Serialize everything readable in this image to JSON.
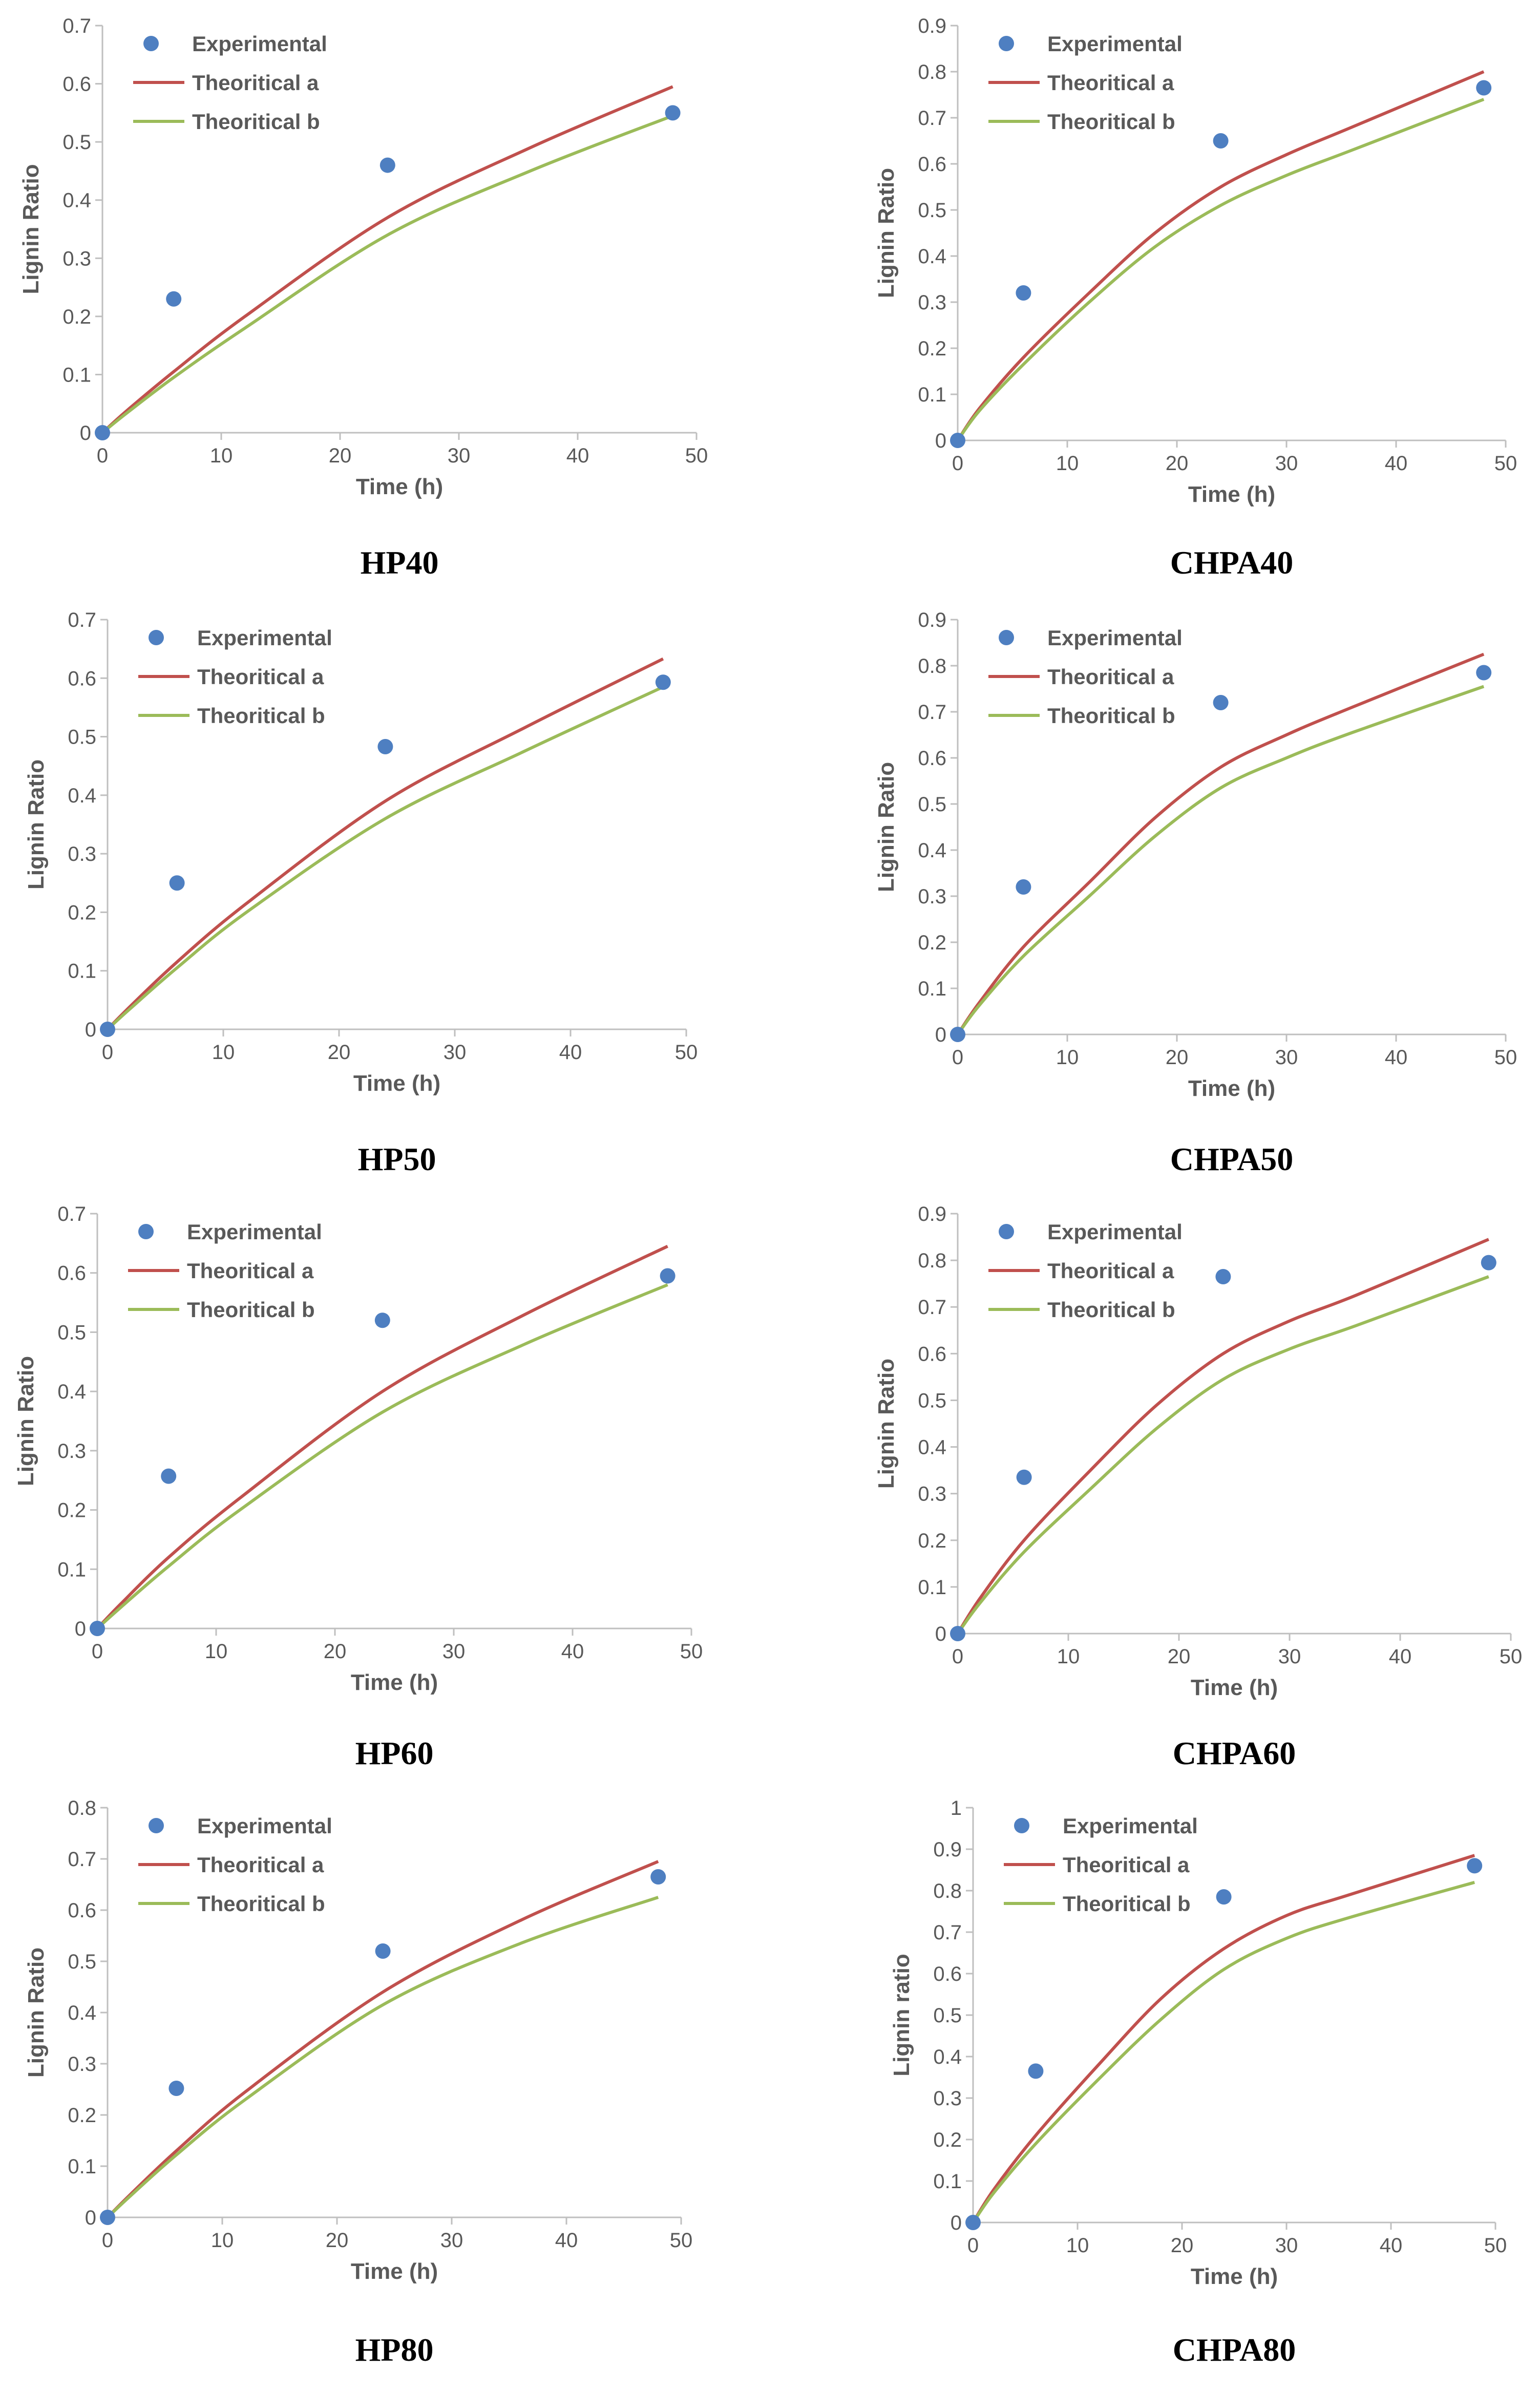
{
  "colors": {
    "experimental": "#4e7fc1",
    "theoretical_a": "#c0504d",
    "theoretical_b": "#9bbb59",
    "axis": "#bfbfbf",
    "text": "#595959"
  },
  "chart_data": [
    {
      "type": "scatter+line",
      "caption": "HP40",
      "xlabel": "Time (h)",
      "ylabel": "Lignin Ratio",
      "xlim": [
        0,
        50
      ],
      "xticks": [
        "0",
        "10",
        "20",
        "30",
        "40",
        "50"
      ],
      "ylim": [
        0,
        0.7
      ],
      "yticks": [
        "0",
        "0.1",
        "0.2",
        "0.3",
        "0.4",
        "0.5",
        "0.6",
        "0.7"
      ],
      "grid": false,
      "legend": "top-left",
      "series": [
        {
          "name": "Experimental",
          "kind": "scatter",
          "x": [
            0,
            6,
            24,
            48
          ],
          "y": [
            0,
            0.23,
            0.46,
            0.55
          ]
        },
        {
          "name": "Theoritical a",
          "kind": "line",
          "x": [
            0,
            2,
            6,
            12,
            24,
            36,
            48
          ],
          "y": [
            0,
            0.037,
            0.105,
            0.2,
            0.37,
            0.49,
            0.595
          ]
        },
        {
          "name": "Theoritical b",
          "kind": "line",
          "x": [
            0,
            2,
            6,
            12,
            24,
            36,
            48
          ],
          "y": [
            0,
            0.033,
            0.095,
            0.18,
            0.34,
            0.45,
            0.545
          ]
        }
      ]
    },
    {
      "type": "scatter+line",
      "caption": "CHPA40",
      "xlabel": "Time (h)",
      "ylabel": "Lignin Ratio",
      "xlim": [
        0,
        50
      ],
      "xticks": [
        "0",
        "10",
        "20",
        "30",
        "40",
        "50"
      ],
      "ylim": [
        0,
        0.9
      ],
      "yticks": [
        "0",
        "0.1",
        "0.2",
        "0.3",
        "0.4",
        "0.5",
        "0.6",
        "0.7",
        "0.8",
        "0.9"
      ],
      "grid": false,
      "legend": "top-left",
      "series": [
        {
          "name": "Experimental",
          "kind": "scatter",
          "x": [
            0,
            6,
            24,
            48
          ],
          "y": [
            0,
            0.32,
            0.65,
            0.765
          ]
        },
        {
          "name": "Theoritical a",
          "kind": "line",
          "x": [
            0,
            2,
            6,
            12,
            18,
            24,
            30,
            36,
            48
          ],
          "y": [
            0,
            0.07,
            0.18,
            0.32,
            0.45,
            0.55,
            0.62,
            0.68,
            0.8
          ]
        },
        {
          "name": "Theoritical b",
          "kind": "line",
          "x": [
            0,
            2,
            6,
            12,
            18,
            24,
            30,
            36,
            48
          ],
          "y": [
            0,
            0.065,
            0.165,
            0.3,
            0.42,
            0.51,
            0.575,
            0.63,
            0.74
          ]
        }
      ]
    },
    {
      "type": "scatter+line",
      "caption": "HP50",
      "xlabel": "Time (h)",
      "ylabel": "Lignin Ratio",
      "xlim": [
        0,
        50
      ],
      "xticks": [
        "0",
        "10",
        "20",
        "30",
        "40",
        "50"
      ],
      "ylim": [
        0,
        0.7
      ],
      "yticks": [
        "0",
        "0.1",
        "0.2",
        "0.3",
        "0.4",
        "0.5",
        "0.6",
        "0.7"
      ],
      "grid": false,
      "legend": "top-left",
      "series": [
        {
          "name": "Experimental",
          "kind": "scatter",
          "x": [
            0,
            6,
            24,
            48
          ],
          "y": [
            0,
            0.25,
            0.483,
            0.593
          ]
        },
        {
          "name": "Theoritical a",
          "kind": "line",
          "x": [
            0,
            2,
            6,
            12,
            24,
            36,
            48
          ],
          "y": [
            0,
            0.04,
            0.115,
            0.215,
            0.39,
            0.515,
            0.633
          ]
        },
        {
          "name": "Theoritical b",
          "kind": "line",
          "x": [
            0,
            2,
            6,
            12,
            24,
            36,
            48
          ],
          "y": [
            0,
            0.036,
            0.105,
            0.2,
            0.36,
            0.475,
            0.585
          ]
        }
      ]
    },
    {
      "type": "scatter+line",
      "caption": "CHPA50",
      "xlabel": "Time (h)",
      "ylabel": "Lignin Ratio",
      "xlim": [
        0,
        50
      ],
      "xticks": [
        "0",
        "10",
        "20",
        "30",
        "40",
        "50"
      ],
      "ylim": [
        0,
        0.9
      ],
      "yticks": [
        "0",
        "0.1",
        "0.2",
        "0.3",
        "0.4",
        "0.5",
        "0.6",
        "0.7",
        "0.8",
        "0.9"
      ],
      "grid": false,
      "legend": "top-left",
      "series": [
        {
          "name": "Experimental",
          "kind": "scatter",
          "x": [
            0,
            6,
            24,
            48
          ],
          "y": [
            0,
            0.32,
            0.72,
            0.785
          ]
        },
        {
          "name": "Theoritical a",
          "kind": "line",
          "x": [
            0,
            2,
            6,
            12,
            18,
            24,
            30,
            36,
            48
          ],
          "y": [
            0,
            0.07,
            0.19,
            0.33,
            0.47,
            0.58,
            0.65,
            0.71,
            0.825
          ]
        },
        {
          "name": "Theoritical b",
          "kind": "line",
          "x": [
            0,
            2,
            6,
            12,
            18,
            24,
            30,
            36,
            48
          ],
          "y": [
            0,
            0.064,
            0.17,
            0.3,
            0.43,
            0.535,
            0.6,
            0.655,
            0.755
          ]
        }
      ]
    },
    {
      "type": "scatter+line",
      "caption": "HP60",
      "xlabel": "Time (h)",
      "ylabel": "Lignin Ratio",
      "xlim": [
        0,
        50
      ],
      "xticks": [
        "0",
        "10",
        "20",
        "30",
        "40",
        "50"
      ],
      "ylim": [
        0,
        0.7
      ],
      "yticks": [
        "0",
        "0.1",
        "0.2",
        "0.3",
        "0.4",
        "0.5",
        "0.6",
        "0.7"
      ],
      "grid": false,
      "legend": "top-left",
      "series": [
        {
          "name": "Experimental",
          "kind": "scatter",
          "x": [
            0,
            6,
            24,
            48
          ],
          "y": [
            0,
            0.257,
            0.52,
            0.595
          ]
        },
        {
          "name": "Theoritical a",
          "kind": "line",
          "x": [
            0,
            2,
            6,
            12,
            24,
            36,
            48
          ],
          "y": [
            0,
            0.042,
            0.12,
            0.22,
            0.4,
            0.53,
            0.645
          ]
        },
        {
          "name": "Theoritical b",
          "kind": "line",
          "x": [
            0,
            2,
            6,
            12,
            24,
            36,
            48
          ],
          "y": [
            0,
            0.036,
            0.105,
            0.2,
            0.365,
            0.48,
            0.58
          ]
        }
      ]
    },
    {
      "type": "scatter+line",
      "caption": "CHPA60",
      "xlabel": "Time (h)",
      "ylabel": "Lignin Ratio",
      "xlim": [
        0,
        50
      ],
      "xticks": [
        "0",
        "10",
        "20",
        "30",
        "40",
        "50"
      ],
      "ylim": [
        0,
        0.9
      ],
      "yticks": [
        "0",
        "0.1",
        "0.2",
        "0.3",
        "0.4",
        "0.5",
        "0.6",
        "0.7",
        "0.8",
        "0.9"
      ],
      "grid": false,
      "legend": "top-left",
      "series": [
        {
          "name": "Experimental",
          "kind": "scatter",
          "x": [
            0,
            6,
            24,
            48
          ],
          "y": [
            0,
            0.335,
            0.765,
            0.795
          ]
        },
        {
          "name": "Theoritical a",
          "kind": "line",
          "x": [
            0,
            2,
            6,
            12,
            18,
            24,
            30,
            36,
            48
          ],
          "y": [
            0,
            0.075,
            0.2,
            0.35,
            0.49,
            0.6,
            0.67,
            0.725,
            0.845
          ]
        },
        {
          "name": "Theoritical b",
          "kind": "line",
          "x": [
            0,
            2,
            6,
            12,
            18,
            24,
            30,
            36,
            48
          ],
          "y": [
            0,
            0.065,
            0.175,
            0.31,
            0.44,
            0.545,
            0.61,
            0.66,
            0.765
          ]
        }
      ]
    },
    {
      "type": "scatter+line",
      "caption": "HP80",
      "xlabel": "Time (h)",
      "ylabel": "Lignin Ratio",
      "xlim": [
        0,
        50
      ],
      "xticks": [
        "0",
        "10",
        "20",
        "30",
        "40",
        "50"
      ],
      "ylim": [
        0,
        0.8
      ],
      "yticks": [
        "0",
        "0.1",
        "0.2",
        "0.3",
        "0.4",
        "0.5",
        "0.6",
        "0.7",
        "0.8"
      ],
      "grid": false,
      "legend": "top-left",
      "series": [
        {
          "name": "Experimental",
          "kind": "scatter",
          "x": [
            0,
            6,
            24,
            48
          ],
          "y": [
            0,
            0.252,
            0.52,
            0.665
          ]
        },
        {
          "name": "Theoritical a",
          "kind": "line",
          "x": [
            0,
            2,
            6,
            12,
            24,
            36,
            48
          ],
          "y": [
            0,
            0.045,
            0.13,
            0.245,
            0.44,
            0.58,
            0.695
          ]
        },
        {
          "name": "Theoritical b",
          "kind": "line",
          "x": [
            0,
            2,
            6,
            12,
            24,
            36,
            48
          ],
          "y": [
            0,
            0.042,
            0.122,
            0.23,
            0.415,
            0.535,
            0.625
          ]
        }
      ]
    },
    {
      "type": "scatter+line",
      "caption": "CHPA80",
      "xlabel": "Time (h)",
      "ylabel": "Lignin ratio",
      "xlim": [
        0,
        50
      ],
      "xticks": [
        "0",
        "10",
        "20",
        "30",
        "40",
        "50"
      ],
      "ylim": [
        0,
        1
      ],
      "yticks": [
        "0",
        "0.1",
        "0.2",
        "0.3",
        "0.4",
        "0.5",
        "0.6",
        "0.7",
        "0.8",
        "0.9",
        "1"
      ],
      "grid": false,
      "legend": "top-left",
      "series": [
        {
          "name": "Experimental",
          "kind": "scatter",
          "x": [
            0,
            6,
            24,
            48
          ],
          "y": [
            0,
            0.365,
            0.785,
            0.86
          ]
        },
        {
          "name": "Theoritical a",
          "kind": "line",
          "x": [
            0,
            2,
            6,
            12,
            18,
            24,
            30,
            36,
            48
          ],
          "y": [
            0,
            0.08,
            0.21,
            0.38,
            0.54,
            0.66,
            0.74,
            0.79,
            0.885
          ]
        },
        {
          "name": "Theoritical b",
          "kind": "line",
          "x": [
            0,
            2,
            6,
            12,
            18,
            24,
            30,
            36,
            48
          ],
          "y": [
            0,
            0.072,
            0.19,
            0.345,
            0.49,
            0.61,
            0.685,
            0.735,
            0.82
          ]
        }
      ]
    }
  ]
}
